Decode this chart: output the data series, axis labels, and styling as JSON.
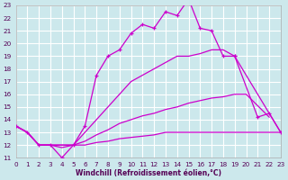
{
  "xlabel": "Windchill (Refroidissement éolien,°C)",
  "background_color": "#cce8ec",
  "grid_color": "#ffffff",
  "line_color": "#cc00cc",
  "xmin": 0,
  "xmax": 23,
  "ymin": 11,
  "ymax": 23,
  "series": [
    {
      "x": [
        0,
        1,
        2,
        3,
        4,
        5,
        6,
        7,
        8,
        9,
        10,
        11,
        12,
        13,
        14,
        15,
        16,
        17,
        18,
        19,
        20,
        21,
        22,
        23
      ],
      "y": [
        13.5,
        13.0,
        12.0,
        12.0,
        11.0,
        12.0,
        13.5,
        17.5,
        19.0,
        19.5,
        20.8,
        21.5,
        21.2,
        22.5,
        22.2,
        23.5,
        21.2,
        21.0,
        19.0,
        19.0,
        null,
        null,
        null,
        null
      ],
      "marker": true
    },
    {
      "x": [
        19,
        20,
        21,
        22,
        23
      ],
      "y": [
        19.0,
        null,
        14.2,
        14.5,
        13.0
      ],
      "marker": true
    },
    {
      "x": [
        0,
        1,
        2,
        3,
        4,
        5,
        6,
        7,
        8,
        9,
        10,
        11,
        12,
        13,
        14,
        15,
        16,
        17,
        18,
        19,
        20,
        21,
        22,
        23
      ],
      "y": [
        13.5,
        13.0,
        12.0,
        12.0,
        11.8,
        12.0,
        13.0,
        14.0,
        15.0,
        16.0,
        17.0,
        17.5,
        18.0,
        18.5,
        19.0,
        19.0,
        19.2,
        19.5,
        19.5,
        19.0,
        null,
        null,
        null,
        null
      ],
      "marker": false
    },
    {
      "x": [
        19,
        20,
        21,
        22,
        23
      ],
      "y": [
        19.0,
        null,
        null,
        null,
        13.0
      ],
      "marker": false
    },
    {
      "x": [
        0,
        1,
        2,
        3,
        4,
        5,
        6,
        7,
        8,
        9,
        10,
        11,
        12,
        13,
        14,
        15,
        16,
        17,
        18,
        19,
        20,
        21,
        22,
        23
      ],
      "y": [
        13.5,
        13.0,
        12.0,
        12.0,
        12.0,
        12.0,
        12.3,
        12.8,
        13.2,
        13.7,
        14.0,
        14.3,
        14.5,
        14.8,
        15.0,
        15.3,
        15.5,
        15.7,
        15.8,
        16.0,
        16.0,
        null,
        14.2,
        null
      ],
      "marker": false
    },
    {
      "x": [
        0,
        1,
        2,
        3,
        4,
        5,
        6,
        7,
        8,
        9,
        10,
        11,
        12,
        13,
        14,
        15,
        16,
        17,
        18,
        19,
        20,
        21,
        22,
        23
      ],
      "y": [
        13.5,
        13.0,
        12.0,
        12.0,
        12.0,
        12.0,
        12.0,
        12.2,
        12.3,
        12.5,
        12.6,
        12.7,
        12.8,
        13.0,
        13.0,
        13.0,
        13.0,
        13.0,
        13.0,
        13.0,
        13.0,
        null,
        null,
        13.0
      ],
      "marker": false
    }
  ]
}
